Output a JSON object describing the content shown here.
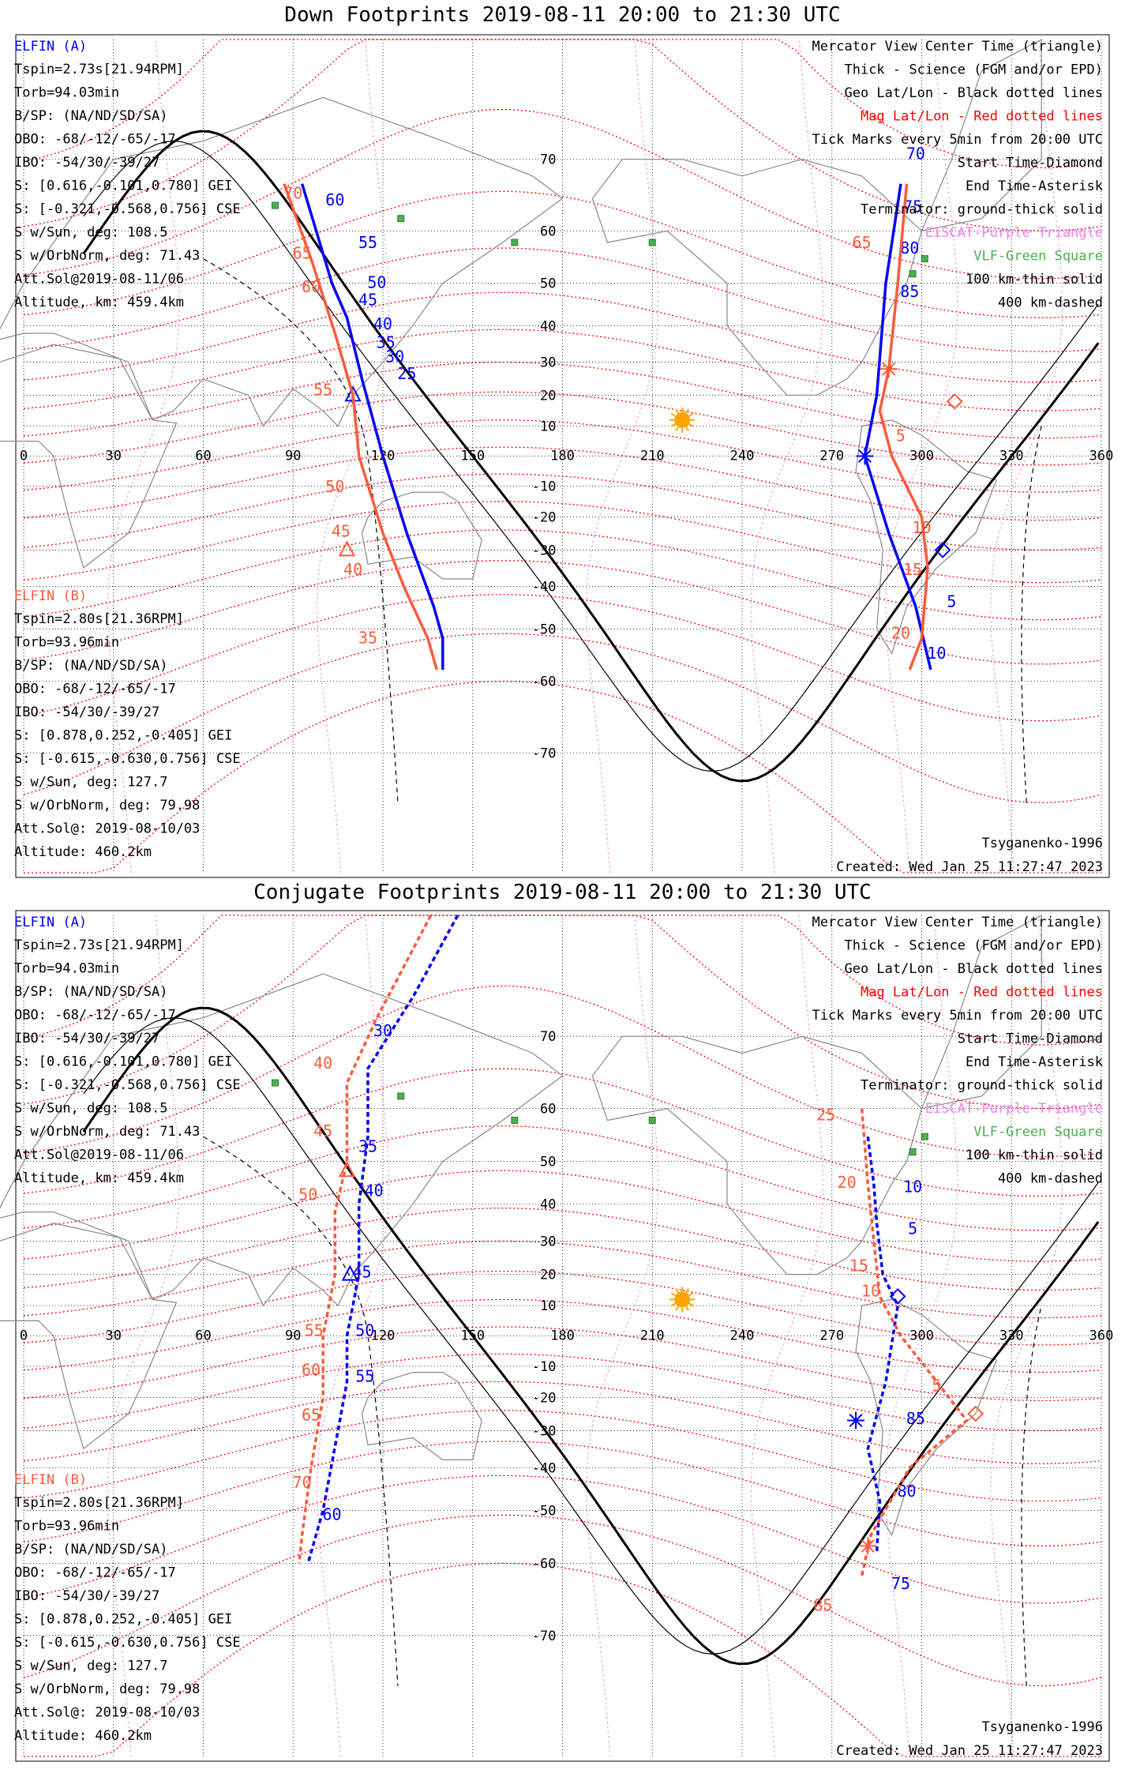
{
  "colors": {
    "elfin_a": "#0000ff",
    "elfin_b": "#ff5a3c",
    "mag_grid": "#ff0000",
    "geo_grid": "#000000",
    "eiscat": "#ee82ee",
    "vlf": "#4caf50",
    "sun": "#ffa500",
    "coast": "#888888"
  },
  "axis_labels": {
    "lon": [
      "0",
      "30",
      "60",
      "90",
      "120",
      "150",
      "180",
      "210",
      "240",
      "270",
      "300",
      "330",
      "360"
    ],
    "lat": [
      "70",
      "60",
      "50",
      "40",
      "30",
      "20",
      "10",
      "-10",
      "-20",
      "-30",
      "-40",
      "-50",
      "-60",
      "-70"
    ]
  },
  "legend": [
    {
      "text": "Mercator View Center Time (triangle)",
      "color": "#000000"
    },
    {
      "text": "Thick - Science (FGM and/or EPD)",
      "color": "#000000"
    },
    {
      "text": "Geo Lat/Lon - Black dotted lines",
      "color": "#000000"
    },
    {
      "text": "Mag Lat/Lon - Red dotted lines",
      "color": "#ff0000"
    },
    {
      "text": "Tick Marks every 5min from 20:00 UTC",
      "color": "#000000"
    },
    {
      "text": "Start Time-Diamond",
      "color": "#000000"
    },
    {
      "text": "End Time-Asterisk",
      "color": "#000000"
    },
    {
      "text": "Terminator: ground-thick solid",
      "color": "#000000"
    },
    {
      "text": "EISCAT-Purple Triangle",
      "color": "#ee82ee"
    },
    {
      "text": "VLF-Green Square",
      "color": "#4caf50"
    },
    {
      "text": "100 km-thin solid",
      "color": "#000000"
    },
    {
      "text": "400 km-dashed",
      "color": "#000000"
    }
  ],
  "elfin_a": {
    "name": "ELFIN (A)",
    "lines": [
      "Tspin=2.73s[21.94RPM]",
      "Torb=94.03min",
      "B/SP: (NA/ND/SD/SA)",
      "OBO: -68/-12/-65/-17",
      "IBO: -54/30/-39/27",
      "S: [0.616,-0.101,0.780] GEI",
      "S: [-0.321,-0.568,0.756] CSE",
      "S w/Sun, deg: 108.5",
      "S w/OrbNorm, deg: 71.43",
      "Att.Sol@2019-08-11/06",
      "Altitude, km: 459.4km"
    ]
  },
  "elfin_b": {
    "name": "ELFIN (B)",
    "lines": [
      "Tspin=2.80s[21.36RPM]",
      "Torb=93.96min",
      "B/SP: (NA/ND/SD/SA)",
      "OBO: -68/-12/-65/-17",
      "IBO: -54/30/-39/27",
      "S: [0.878,0.252,-0.405] GEI",
      "S: [-0.615,-0.630,0.756] CSE",
      "S w/Sun, deg: 127.7",
      "S w/OrbNorm, deg: 79.98",
      "Att.Sol@: 2019-08-10/03",
      "Altitude: 460.2km"
    ]
  },
  "model": "Tsyganenko-1996",
  "created": "Created: Wed Jan 25 11:27:47 2023",
  "panels": [
    {
      "id": "down",
      "title": "Down Footprints 2019-08-11 20:00 to 21:30 UTC",
      "style": "solid",
      "tracks": [
        {
          "sat": "elfin_a",
          "points": [
            [
              93,
              67
            ],
            [
              103,
              50
            ],
            [
              108,
              42
            ],
            [
              113,
              25
            ],
            [
              120,
              0
            ],
            [
              128,
              -25
            ],
            [
              137,
              -45
            ],
            [
              140,
              -52
            ],
            [
              140,
              -58
            ]
          ],
          "ticks": [
            [
              104,
              64,
              "60"
            ],
            [
              115,
              57,
              "55"
            ],
            [
              118,
              49,
              "50"
            ],
            [
              115,
              45,
              "45"
            ],
            [
              120,
              39,
              "40"
            ],
            [
              121,
              34,
              "35"
            ],
            [
              124,
              30,
              "30"
            ],
            [
              128,
              25,
              "25"
            ]
          ],
          "markers": [
            {
              "type": "triangle",
              "lon": 110,
              "lat": 20
            }
          ]
        },
        {
          "sat": "elfin_b",
          "points": [
            [
              87,
              67
            ],
            [
              96,
              55
            ],
            [
              104,
              38
            ],
            [
              110,
              20
            ],
            [
              112,
              0
            ],
            [
              120,
              -25
            ],
            [
              127,
              -40
            ],
            [
              135,
              -52
            ],
            [
              138,
              -58
            ]
          ],
          "ticks": [
            [
              90,
              65,
              "70"
            ],
            [
              93,
              55,
              "65"
            ],
            [
              96,
              48,
              "60"
            ],
            [
              100,
              20,
              "55"
            ],
            [
              104,
              -12,
              "50"
            ],
            [
              106,
              -26,
              "45"
            ],
            [
              110,
              -37,
              "40"
            ],
            [
              115,
              -53,
              "35"
            ]
          ],
          "markers": [
            {
              "type": "triangle",
              "lon": 108,
              "lat": -30
            }
          ]
        },
        {
          "sat": "elfin_a",
          "points": [
            [
              293,
              67
            ],
            [
              288,
              50
            ],
            [
              285,
              20
            ],
            [
              281,
              0
            ],
            [
              289,
              -25
            ],
            [
              298,
              -45
            ],
            [
              303,
              -58
            ]
          ],
          "ticks": [
            [
              298,
              70,
              "70"
            ],
            [
              297,
              63,
              "75"
            ],
            [
              296,
              56,
              "80"
            ],
            [
              296,
              47,
              "85"
            ],
            [
              310,
              -45,
              "5"
            ],
            [
              305,
              -56,
              "10"
            ]
          ],
          "markers": [
            {
              "type": "asterisk",
              "lon": 281,
              "lat": 0
            },
            {
              "type": "diamond",
              "lon": 307,
              "lat": -30
            }
          ]
        },
        {
          "sat": "elfin_b",
          "points": [
            [
              295,
              67
            ],
            [
              292,
              50
            ],
            [
              289,
              28
            ],
            [
              286,
              15
            ],
            [
              290,
              0
            ],
            [
              300,
              -20
            ],
            [
              302,
              -35
            ],
            [
              300,
              -52
            ],
            [
              296,
              -58
            ]
          ],
          "ticks": [
            [
              280,
              57,
              "65"
            ],
            [
              293,
              5,
              "5"
            ],
            [
              300,
              -25,
              "10"
            ],
            [
              297,
              -37,
              "15"
            ],
            [
              293,
              -52,
              "20"
            ]
          ],
          "markers": [
            {
              "type": "asterisk",
              "lon": 289,
              "lat": 28
            },
            {
              "type": "diamond",
              "lon": 311,
              "lat": 18
            }
          ]
        }
      ],
      "tick_labels_extra": []
    },
    {
      "id": "conj",
      "title": "Conjugate Footprints 2019-08-11 20:00 to 21:30 UTC",
      "style": "dashed",
      "tracks": [
        {
          "sat": "elfin_a",
          "points": [
            [
              145,
              80
            ],
            [
              130,
              74
            ],
            [
              115,
              66
            ],
            [
              115,
              55
            ],
            [
              112,
              40
            ],
            [
              112,
              20
            ],
            [
              108,
              0
            ],
            [
              108,
              -15
            ],
            [
              105,
              -30
            ],
            [
              100,
              -50
            ],
            [
              95,
              -60
            ]
          ],
          "ticks": [
            [
              120,
              70,
              "30"
            ],
            [
              115,
              52,
              "35"
            ],
            [
              117,
              42,
              "40"
            ],
            [
              113,
              19,
              "45"
            ],
            [
              114,
              0,
              "50"
            ],
            [
              114,
              -15,
              "55"
            ],
            [
              103,
              -52,
              "60"
            ]
          ],
          "markers": [
            {
              "type": "triangle",
              "lon": 109,
              "lat": 20
            }
          ]
        },
        {
          "sat": "elfin_b",
          "points": [
            [
              136,
              80
            ],
            [
              118,
              72
            ],
            [
              108,
              64
            ],
            [
              108,
              50
            ],
            [
              104,
              38
            ],
            [
              104,
              20
            ],
            [
              100,
              0
            ],
            [
              100,
              -20
            ],
            [
              96,
              -40
            ],
            [
              93,
              -55
            ],
            [
              92,
              -60
            ]
          ],
          "ticks": [
            [
              100,
              66,
              "40"
            ],
            [
              100,
              55,
              "45"
            ],
            [
              95,
              41,
              "50"
            ],
            [
              97,
              0,
              "55"
            ],
            [
              96,
              -13,
              "60"
            ],
            [
              96,
              -27,
              "65"
            ],
            [
              93,
              -45,
              "70"
            ]
          ],
          "markers": [
            {
              "type": "triangle",
              "lon": 108,
              "lat": 48
            }
          ]
        },
        {
          "sat": "elfin_a",
          "points": [
            [
              282,
              55
            ],
            [
              284,
              45
            ],
            [
              285,
              35
            ],
            [
              287,
              20
            ],
            [
              292,
              10
            ],
            [
              288,
              -15
            ],
            [
              282,
              -35
            ],
            [
              286,
              -48
            ],
            [
              285,
              -58
            ]
          ],
          "ticks": [
            [
              297,
              43,
              "10"
            ],
            [
              297,
              32,
              "5"
            ],
            [
              298,
              -28,
              "85"
            ],
            [
              295,
              -47,
              "80"
            ],
            [
              293,
              -64,
              "75"
            ]
          ],
          "markers": [
            {
              "type": "diamond",
              "lon": 292,
              "lat": 13
            },
            {
              "type": "asterisk",
              "lon": 278,
              "lat": -27
            }
          ]
        },
        {
          "sat": "elfin_b",
          "points": [
            [
              280,
              60
            ],
            [
              282,
              45
            ],
            [
              284,
              30
            ],
            [
              286,
              13
            ],
            [
              293,
              0
            ],
            [
              305,
              -15
            ],
            [
              315,
              -27
            ],
            [
              296,
              -40
            ],
            [
              283,
              -55
            ],
            [
              280,
              -62
            ]
          ],
          "ticks": [
            [
              268,
              58,
              "25"
            ],
            [
              275,
              44,
              "20"
            ],
            [
              279,
              21,
              "15"
            ],
            [
              283,
              13,
              "10"
            ],
            [
              305,
              -18,
              "5"
            ],
            [
              267,
              -67,
              "85"
            ]
          ],
          "markers": [
            {
              "type": "diamond",
              "lon": 318,
              "lat": -25
            },
            {
              "type": "asterisk",
              "lon": 282,
              "lat": -57
            }
          ]
        }
      ],
      "tick_labels_extra": []
    }
  ],
  "vlf_sites": [
    [
      84,
      64
    ],
    [
      126,
      62
    ],
    [
      164,
      58
    ],
    [
      210,
      58
    ],
    [
      297,
      52
    ],
    [
      301,
      55
    ]
  ],
  "sun": {
    "lon": 220,
    "lat": 12
  }
}
